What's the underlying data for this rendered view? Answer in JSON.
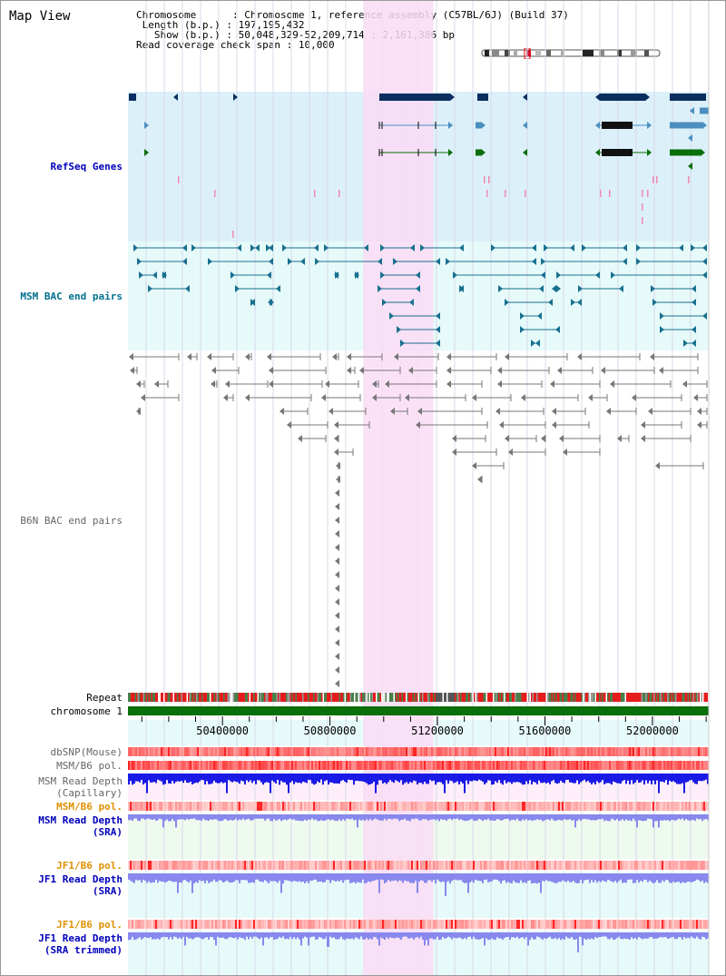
{
  "page": {
    "title": "Map View"
  },
  "info": {
    "chromosome_key": "Chromosome",
    "chromosome_value": "Chromosome 1, reference assembly (C57BL/6J) (Build 37)",
    "length_key": "Length (b.p.)",
    "length_value": "197,195,432",
    "show_key": "Show (b.p.)",
    "show_value": "50,048,329-52,209,714 : 2,161,386 bp",
    "coverage_key": "Read coverage check span",
    "coverage_value": "10,000"
  },
  "tracks": {
    "refseq": "RefSeq Genes",
    "msm_bac": "MSM BAC end pairs",
    "b6n_bac": "B6N BAC end pairs",
    "repeat": "Repeat",
    "chromosome": "chromosome 1",
    "dbsnp": "dbSNP(Mouse)",
    "msm_b6_pol_1": "MSM/B6 pol.",
    "msm_depth_cap_1": "MSM Read Depth",
    "msm_depth_cap_2": "(Capillary)",
    "msm_b6_pol_2": "MSM/B6 pol.",
    "msm_depth_sra_1": "MSM Read Depth",
    "msm_depth_sra_2": "(SRA)",
    "jf1_b6_pol_1": "JF1/B6 pol.",
    "jf1_depth_sra_1": "JF1 Read Depth",
    "jf1_depth_sra_2": "(SRA)",
    "jf1_b6_pol_2": "JF1/B6 pol.",
    "jf1_depth_trim_1": "JF1 Read Depth",
    "jf1_depth_trim_2": "(SRA trimmed)"
  },
  "axis": {
    "ticks": [
      "50400000",
      "50800000",
      "51200000",
      "51600000",
      "52000000"
    ],
    "range": [
      50048329,
      52209714
    ]
  },
  "highlight": {
    "start": 50925000,
    "end": 51185000
  },
  "colors": {
    "refseq_bg": "#dcf0fa",
    "msm_bg": "#e6fafa",
    "highlight": "#fadcf5",
    "gene_dark": "#0a2e5f",
    "gene_mid": "#4a8fbf",
    "gene_green": "#0a6e0a",
    "bac_teal": "#19708f",
    "bac_gray": "#777777",
    "chrom_green": "#0a6e0a",
    "depth_blue": "#1a1ae6",
    "depth_light": "#8888ee",
    "pol_red": "#ff3030"
  }
}
